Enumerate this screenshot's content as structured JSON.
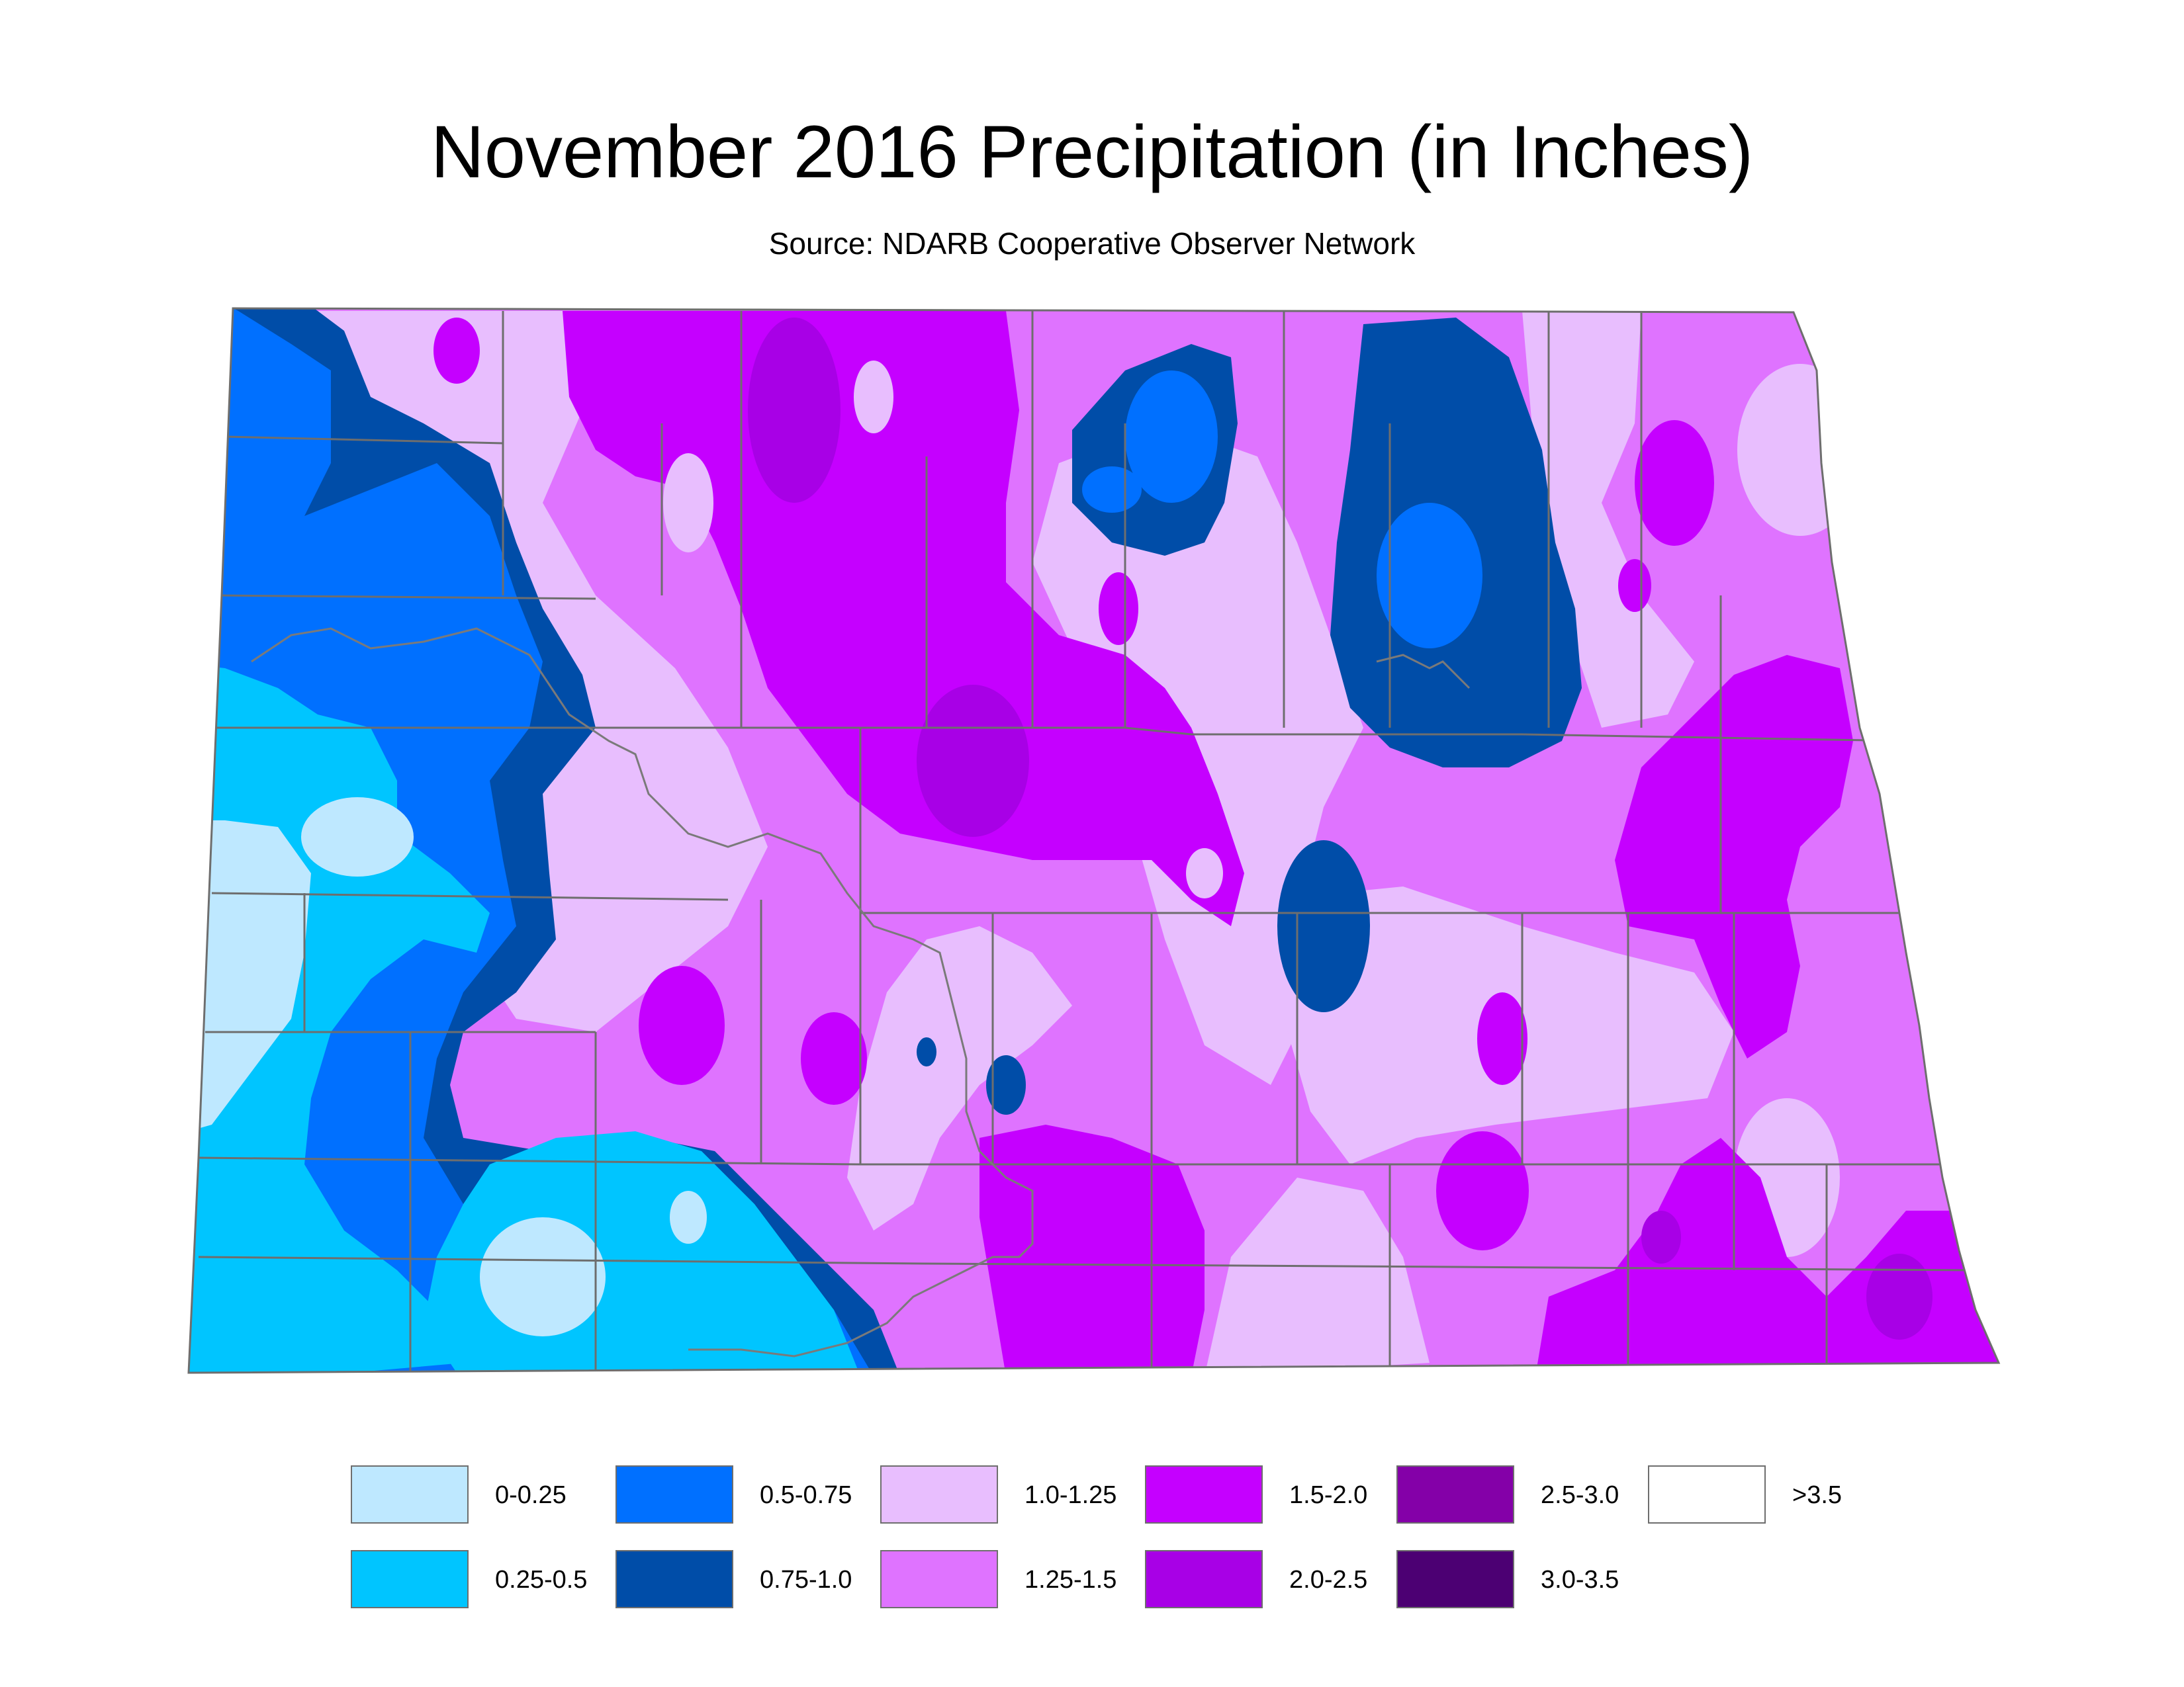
{
  "title": "November 2016 Precipitation (in Inches)",
  "subtitle": "Source: NDARB Cooperative Observer Network",
  "legend": [
    {
      "label": "0-0.25",
      "color": "#bee8ff",
      "icon": "light-cyan-swatch"
    },
    {
      "label": "0.25-0.5",
      "color": "#00c5ff",
      "icon": "cyan-swatch"
    },
    {
      "label": "0.5-0.75",
      "color": "#0070ff",
      "icon": "blue-swatch"
    },
    {
      "label": "0.75-1.0",
      "color": "#004da8",
      "icon": "dark-blue-swatch"
    },
    {
      "label": "1.0-1.25",
      "color": "#e8befe",
      "icon": "light-lavender-swatch"
    },
    {
      "label": "1.25-1.5",
      "color": "#df73ff",
      "icon": "orchid-swatch"
    },
    {
      "label": "1.5-2.0",
      "color": "#c500ff",
      "icon": "magenta-swatch"
    },
    {
      "label": "2.0-2.5",
      "color": "#a800e6",
      "icon": "purple-swatch"
    },
    {
      "label": "2.5-3.0",
      "color": "#8400a8",
      "icon": "dark-purple-swatch"
    },
    {
      "label": "3.0-3.5",
      "color": "#4c0073",
      "icon": "deep-purple-swatch"
    },
    {
      "label": ">3.5",
      "color": "#ffffff",
      "icon": "white-swatch"
    }
  ]
}
